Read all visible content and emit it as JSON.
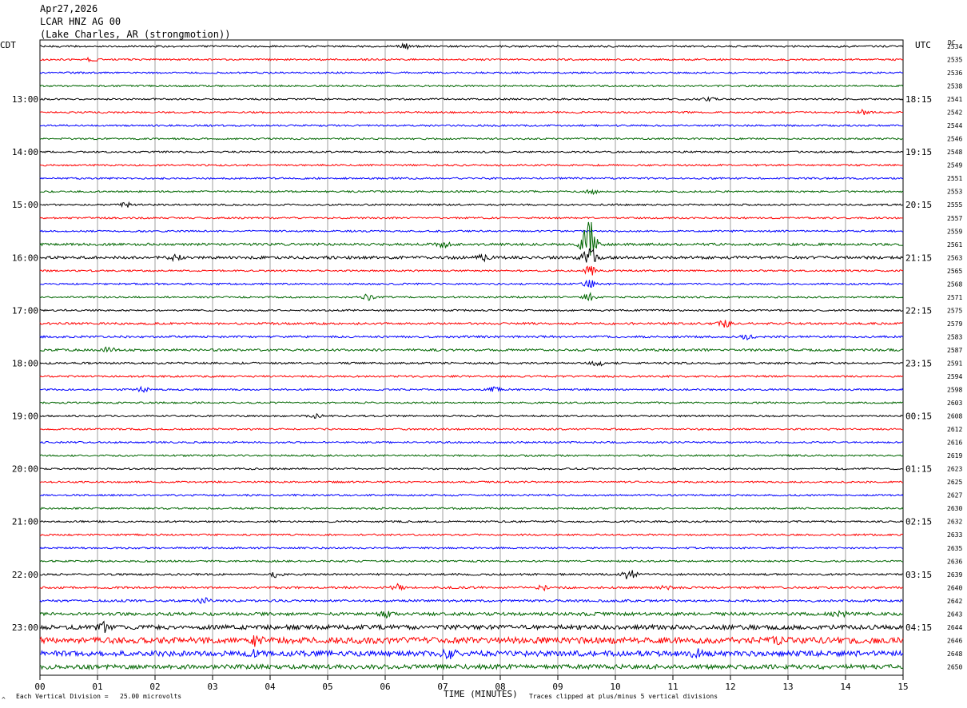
{
  "header": {
    "date": "Apr27,2026",
    "channel": "LCAR HNZ AG 00",
    "location": "(Lake Charles, AR (strongmotion))"
  },
  "left_timezone": "CDT",
  "right_timezone": "UTC",
  "right_column_label": "DC",
  "footer": {
    "xlabel": "TIME (MINUTES)",
    "scale_note": "Each Vertical Division =   25.00 microvolts",
    "clip_note": "Traces clipped at plus/minus 5 vertical divisions",
    "corner_mark": "^"
  },
  "chart_data": {
    "type": "line",
    "title": "LCAR HNZ AG 00",
    "xlabel": "TIME (MINUTES)",
    "ylabel": "",
    "xlim": [
      0,
      15
    ],
    "x_ticks": [
      "00",
      "01",
      "02",
      "03",
      "04",
      "05",
      "06",
      "07",
      "08",
      "09",
      "10",
      "11",
      "12",
      "13",
      "14",
      "15"
    ],
    "grid": true,
    "trace_colors": [
      "#000000",
      "#ff0000",
      "#0000ff",
      "#006600"
    ],
    "cdt_labels": [
      "13:00",
      "14:00",
      "15:00",
      "16:00",
      "17:00",
      "18:00",
      "19:00",
      "20:00",
      "21:00",
      "22:00",
      "23:00"
    ],
    "utc_labels": [
      "18:15",
      "19:15",
      "20:15",
      "21:15",
      "22:15",
      "23:15",
      "00:15",
      "01:15",
      "02:15",
      "03:15",
      "04:15"
    ],
    "dc_offsets": [
      "2534",
      "2535",
      "2536",
      "2538",
      "2541",
      "2542",
      "2544",
      "2546",
      "2548",
      "2549",
      "2551",
      "2553",
      "2555",
      "2557",
      "2559",
      "2561",
      "2563",
      "2565",
      "2568",
      "2571",
      "2575",
      "2579",
      "2583",
      "2587",
      "2591",
      "2594",
      "2598",
      "2603",
      "2608",
      "2612",
      "2616",
      "2619",
      "2623",
      "2625",
      "2627",
      "2630",
      "2632",
      "2633",
      "2635",
      "2636",
      "2639",
      "2640",
      "2642",
      "2643",
      "2644",
      "2646",
      "2648",
      "2650"
    ],
    "trace_amplitude": [
      1,
      1,
      1,
      1,
      1,
      1,
      1,
      1,
      1,
      1,
      1,
      1,
      1,
      1,
      1,
      1.4,
      1.6,
      1,
      1,
      1,
      1,
      1.2,
      1.2,
      1.3,
      1.1,
      1,
      1,
      1,
      1,
      1,
      1,
      1,
      1,
      1,
      1,
      1,
      1,
      1,
      1,
      1,
      1.1,
      1.2,
      1.3,
      1.8,
      2.5,
      3.5,
      3.0,
      2.5
    ],
    "events": [
      {
        "trace": 0,
        "minute": 6.35,
        "amplitude": 3
      },
      {
        "trace": 1,
        "minute": 0.9,
        "amplitude": 2
      },
      {
        "trace": 4,
        "minute": 11.6,
        "amplitude": 2.5
      },
      {
        "trace": 5,
        "minute": 14.3,
        "amplitude": 3
      },
      {
        "trace": 11,
        "minute": 9.6,
        "amplitude": 2.5
      },
      {
        "trace": 12,
        "minute": 1.5,
        "amplitude": 2.5
      },
      {
        "trace": 15,
        "minute": 7.0,
        "amplitude": 4
      },
      {
        "trace": 15,
        "minute": 9.55,
        "amplitude": 30
      },
      {
        "trace": 16,
        "minute": 2.35,
        "amplitude": 3
      },
      {
        "trace": 16,
        "minute": 9.55,
        "amplitude": 14
      },
      {
        "trace": 16,
        "minute": 7.7,
        "amplitude": 3
      },
      {
        "trace": 17,
        "minute": 9.55,
        "amplitude": 6
      },
      {
        "trace": 18,
        "minute": 9.55,
        "amplitude": 5
      },
      {
        "trace": 19,
        "minute": 9.55,
        "amplitude": 4
      },
      {
        "trace": 19,
        "minute": 5.7,
        "amplitude": 3
      },
      {
        "trace": 21,
        "minute": 11.9,
        "amplitude": 4
      },
      {
        "trace": 22,
        "minute": 12.3,
        "amplitude": 3
      },
      {
        "trace": 23,
        "minute": 1.2,
        "amplitude": 3
      },
      {
        "trace": 24,
        "minute": 9.7,
        "amplitude": 3
      },
      {
        "trace": 26,
        "minute": 1.8,
        "amplitude": 3
      },
      {
        "trace": 26,
        "minute": 7.9,
        "amplitude": 3
      },
      {
        "trace": 28,
        "minute": 4.8,
        "amplitude": 2.5
      },
      {
        "trace": 40,
        "minute": 10.25,
        "amplitude": 8
      },
      {
        "trace": 40,
        "minute": 4.1,
        "amplitude": 3
      },
      {
        "trace": 41,
        "minute": 6.2,
        "amplitude": 4
      },
      {
        "trace": 41,
        "minute": 8.75,
        "amplitude": 3
      },
      {
        "trace": 41,
        "minute": 10.85,
        "amplitude": 3
      },
      {
        "trace": 42,
        "minute": 2.85,
        "amplitude": 3
      },
      {
        "trace": 43,
        "minute": 6.0,
        "amplitude": 4
      },
      {
        "trace": 43,
        "minute": 13.9,
        "amplitude": 4
      },
      {
        "trace": 44,
        "minute": 1.1,
        "amplitude": 5
      },
      {
        "trace": 45,
        "minute": 3.75,
        "amplitude": 6
      },
      {
        "trace": 45,
        "minute": 12.85,
        "amplitude": 5
      },
      {
        "trace": 46,
        "minute": 3.75,
        "amplitude": 6
      },
      {
        "trace": 46,
        "minute": 7.1,
        "amplitude": 6
      },
      {
        "trace": 46,
        "minute": 11.4,
        "amplitude": 5
      }
    ]
  }
}
